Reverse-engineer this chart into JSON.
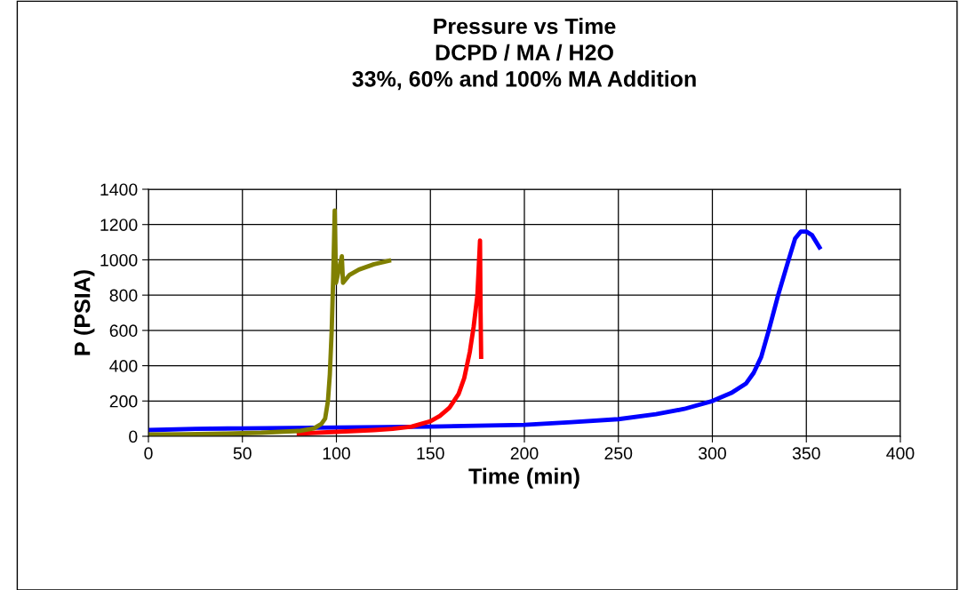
{
  "chart_data": {
    "type": "line",
    "title": "Pressure vs Time\nDCPD / MA / H2O\n33%, 60% and 100% MA Addition",
    "xlabel": "Time (min)",
    "ylabel": "P (PSIA)",
    "xlim": [
      0,
      400
    ],
    "xticks": [
      0,
      50,
      100,
      150,
      200,
      250,
      300,
      350,
      400
    ],
    "ylim": [
      0,
      1400
    ],
    "yticks": [
      0,
      200,
      400,
      600,
      800,
      1000,
      1200,
      1400
    ],
    "grid": true,
    "marker": "none",
    "line_style": "solid",
    "series": [
      {
        "color": "#0000ff",
        "x": [
          0,
          25,
          50,
          100,
          150,
          200,
          225,
          250,
          270,
          285,
          300,
          310,
          318,
          322,
          326,
          330,
          335,
          340,
          344,
          347,
          350,
          353,
          357
        ],
        "values": [
          35,
          42,
          45,
          50,
          55,
          65,
          80,
          97,
          125,
          155,
          200,
          245,
          300,
          360,
          450,
          600,
          800,
          980,
          1120,
          1160,
          1160,
          1140,
          1070
        ]
      },
      {
        "color": "#ff0000",
        "x": [
          80,
          100,
          120,
          130,
          140,
          150,
          155,
          160,
          165,
          168,
          171,
          173,
          175,
          176.4,
          176.7,
          177
        ],
        "values": [
          15,
          25,
          35,
          42,
          55,
          85,
          115,
          160,
          240,
          330,
          480,
          620,
          800,
          1110,
          700,
          450
        ]
      },
      {
        "color": "#808000",
        "x": [
          0,
          20,
          40,
          60,
          80,
          88,
          92,
          94,
          95.5,
          96.5,
          97.5,
          98.3,
          99.1,
          99.8,
          102.9,
          103.5,
          107,
          112,
          120,
          128
        ],
        "values": [
          10,
          12,
          15,
          20,
          30,
          45,
          70,
          100,
          200,
          350,
          600,
          900,
          1280,
          870,
          1020,
          870,
          915,
          945,
          975,
          995
        ]
      }
    ]
  }
}
